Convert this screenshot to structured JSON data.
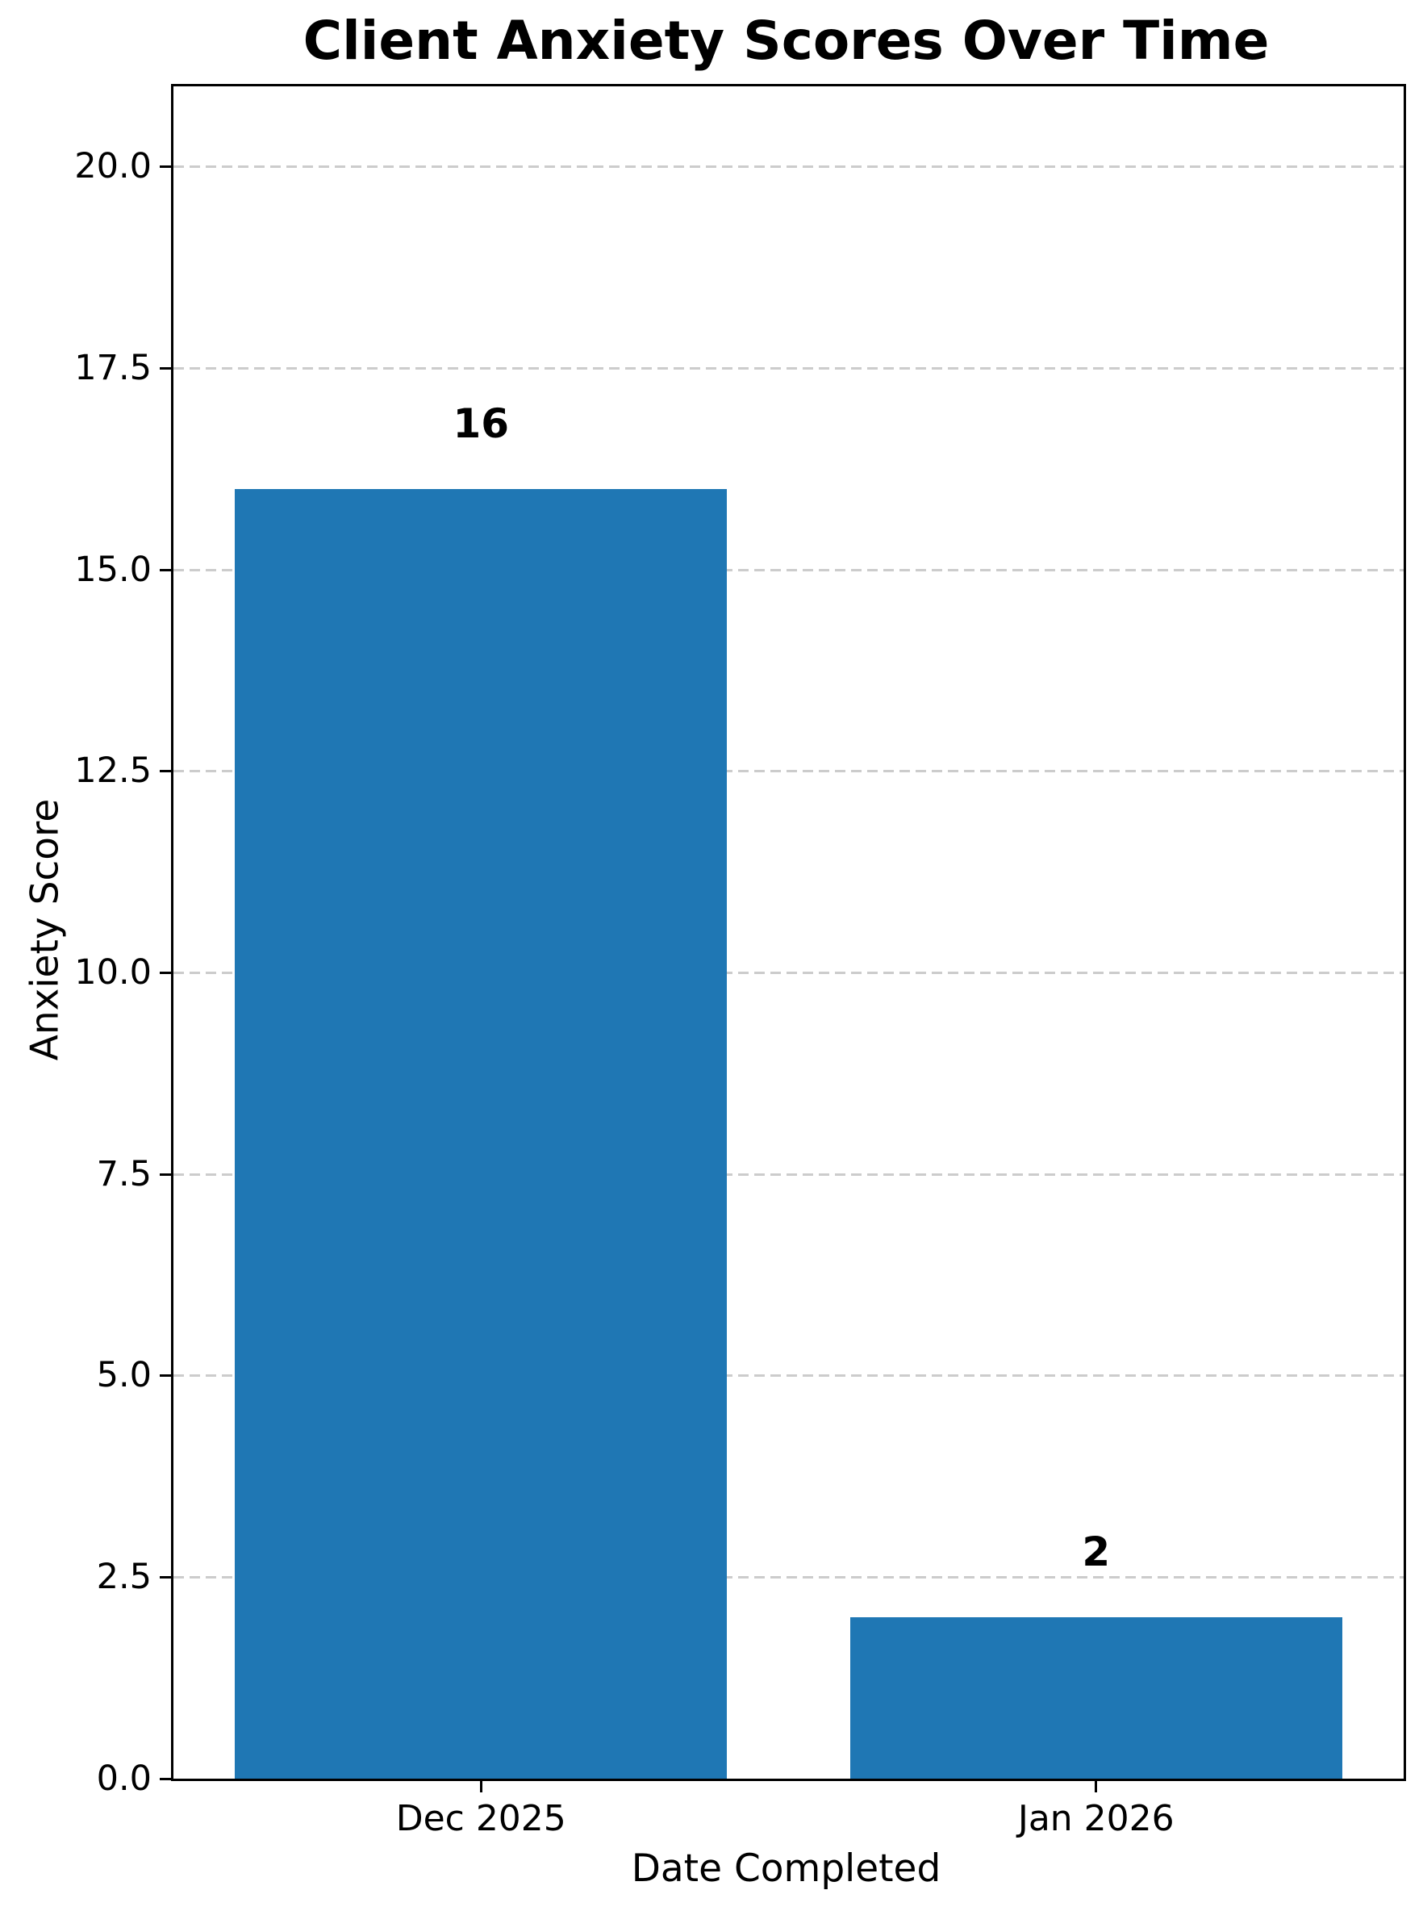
{
  "chart": {
    "title": "Client Anxiety Scores Over Time",
    "xlabel": "Date Completed",
    "ylabel": "Anxiety Score"
  },
  "chart_data": {
    "type": "bar",
    "title": "Client Anxiety Scores Over Time",
    "xlabel": "Date Completed",
    "ylabel": "Anxiety Score",
    "categories": [
      "Dec 2025",
      "Jan 2026"
    ],
    "values": [
      16,
      2
    ],
    "bar_value_labels": [
      "16",
      "2"
    ],
    "ylim": [
      0,
      21
    ],
    "yticks": [
      0.0,
      2.5,
      5.0,
      7.5,
      10.0,
      12.5,
      15.0,
      17.5,
      20.0
    ],
    "ytick_labels": [
      "0.0",
      "2.5",
      "5.0",
      "7.5",
      "10.0",
      "12.5",
      "15.0",
      "17.5",
      "20.0"
    ],
    "grid": "horizontal-dashed",
    "legend": false,
    "bar_color": "#1f77b4",
    "grid_color": "#cccccc",
    "axis_color": "#000000",
    "text_color": "#000000"
  }
}
